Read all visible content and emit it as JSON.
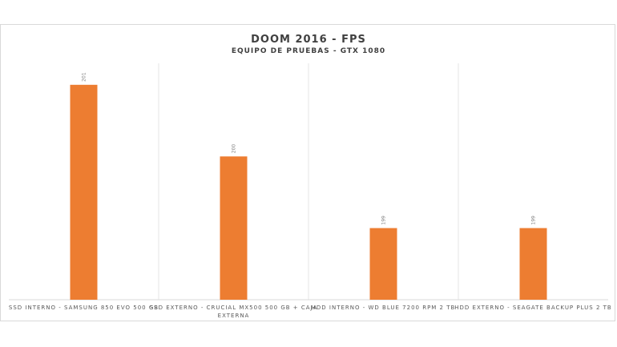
{
  "chart_data": {
    "type": "bar",
    "title": "DOOM 2016 - FPS",
    "subtitle": "EQUIPO DE PRUEBAS - GTX 1080",
    "categories": [
      [
        "SSD INTERNO - SAMSUNG 850 EVO 500 GB"
      ],
      [
        "SSD EXTERNO - CRUCIAL MX500 500 GB + CAJA",
        "EXTERNA"
      ],
      [
        "HDD INTERNO - WD BLUE 7200 RPM 2 TB"
      ],
      [
        "HDD EXTERNO - SEAGATE BACKUP PLUS 2 TB"
      ]
    ],
    "values": [
      201,
      200,
      199,
      199
    ],
    "data_labels": [
      "201",
      "200",
      "199",
      "199"
    ],
    "ylim": [
      198,
      201.3
    ],
    "grid": false,
    "legend": "none",
    "bar_color": "#ED7D31",
    "divider_color": "#e6e6e6",
    "axis_color": "#d9d9d9"
  }
}
